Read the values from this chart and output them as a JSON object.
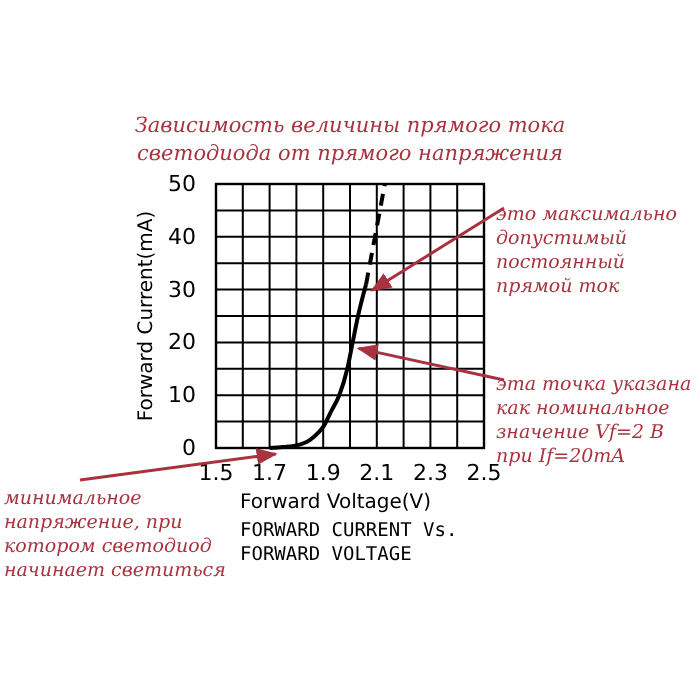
{
  "chart_data": {
    "type": "line",
    "title": "Зависимость величины прямого тока светодиода от прямого напряжения",
    "subtitle": "FORWARD CURRENT Vs. FORWARD VOLTAGE",
    "xlabel": "Forward Voltage(V)",
    "ylabel": "Forward Current(mA)",
    "xlim": [
      1.5,
      2.5
    ],
    "ylim": [
      0,
      50
    ],
    "xticks": [
      1.5,
      {
        "value": 1.6,
        "label": null
      },
      1.7,
      {
        "value": 1.8,
        "label": null
      },
      1.9,
      {
        "value": 2.0,
        "label": null
      },
      2.1,
      {
        "value": 2.2,
        "label": null
      },
      2.3,
      {
        "value": 2.4,
        "label": null
      },
      2.5
    ],
    "yticks": [
      0,
      {
        "value": 5,
        "label": null
      },
      10,
      {
        "value": 15,
        "label": null
      },
      20,
      {
        "value": 25,
        "label": null
      },
      30,
      {
        "value": 35,
        "label": null
      },
      40,
      {
        "value": 45,
        "label": null
      },
      50
    ],
    "grid": true,
    "series": [
      {
        "color": "#000000",
        "line_style": "solid",
        "x": [
          1.7,
          1.75,
          1.8,
          1.85,
          1.88,
          1.9,
          1.93,
          1.96,
          1.99,
          2.01,
          2.03,
          2.06
        ],
        "values": [
          0,
          0.2,
          0.5,
          1.5,
          2.8,
          4,
          7,
          10,
          15,
          20,
          25,
          31
        ]
      },
      {
        "color": "#000000",
        "line_style": "dashed",
        "x": [
          2.06,
          2.13
        ],
        "values": [
          31,
          50
        ]
      }
    ],
    "annotations": [
      {
        "text": "это максимально допустимый постоянный прямой ток",
        "x": 2.06,
        "y": 31
      },
      {
        "text": "эта точка указана как номинальное значение Vf=2 В при If=20mA",
        "x": 2.01,
        "y": 20
      },
      {
        "text": "минимальное напряжение, при котором светодиод начинает светиться",
        "x": 1.7,
        "y": 0
      }
    ]
  }
}
